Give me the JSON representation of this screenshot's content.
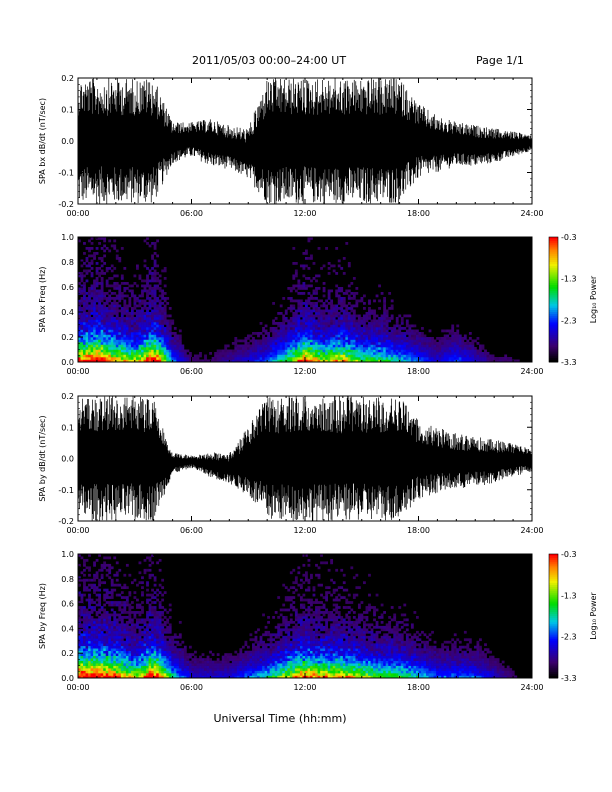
{
  "header": {
    "title": "2011/05/03  00:00–24:00 UT",
    "page": "Page 1/1"
  },
  "xlabel": "Universal Time (hh:mm)",
  "colorbar": {
    "label": "Log₁₀ Power",
    "ticks": [
      "-0.3",
      "-1.3",
      "-2.3",
      "-3.3"
    ],
    "range": [
      -3.3,
      -0.3
    ]
  },
  "chart_data": [
    {
      "type": "line",
      "ylabel": "SPA bx dB/dt (nT/sec)",
      "xlim": [
        0,
        24
      ],
      "ylim": [
        -0.2,
        0.2
      ],
      "xticks": [
        "00:00",
        "06:00",
        "12:00",
        "18:00",
        "24:00"
      ],
      "yticks": [
        "-0.2",
        "-0.1",
        "0.0",
        "0.1",
        "0.2"
      ],
      "x": [
        0,
        1,
        2,
        3,
        4,
        5,
        6,
        7,
        8,
        9,
        10,
        11,
        12,
        13,
        14,
        15,
        16,
        17,
        18,
        19,
        20,
        21,
        22,
        23,
        24
      ],
      "envelope_upper": [
        0.2,
        0.2,
        0.2,
        0.2,
        0.2,
        0.06,
        0.06,
        0.07,
        0.05,
        0.04,
        0.2,
        0.2,
        0.2,
        0.2,
        0.2,
        0.2,
        0.2,
        0.2,
        0.12,
        0.08,
        0.06,
        0.05,
        0.04,
        0.03,
        0.02
      ],
      "envelope_lower": [
        -0.2,
        -0.2,
        -0.2,
        -0.2,
        -0.2,
        -0.07,
        -0.05,
        -0.08,
        -0.09,
        -0.12,
        -0.2,
        -0.2,
        -0.2,
        -0.2,
        -0.2,
        -0.2,
        -0.2,
        -0.2,
        -0.12,
        -0.1,
        -0.08,
        -0.08,
        -0.07,
        -0.05,
        -0.03
      ]
    },
    {
      "type": "heatmap",
      "ylabel": "SPA bx Freq (Hz)",
      "xlim": [
        0,
        24
      ],
      "ylim": [
        0,
        1
      ],
      "xticks": [
        "00:00",
        "06:00",
        "12:00",
        "18:00",
        "24:00"
      ],
      "yticks": [
        "0.0",
        "0.2",
        "0.4",
        "0.6",
        "0.8",
        "1.0"
      ],
      "zlim": [
        -3.3,
        -0.3
      ],
      "x": [
        0,
        1,
        2,
        3,
        4,
        5,
        6,
        7,
        8,
        9,
        10,
        11,
        12,
        13,
        14,
        15,
        16,
        17,
        18,
        19,
        20,
        21,
        22,
        23,
        24
      ],
      "activity": [
        0.8,
        0.9,
        0.7,
        0.6,
        0.9,
        0.3,
        0.1,
        0.1,
        0.15,
        0.2,
        0.3,
        0.5,
        0.8,
        0.6,
        0.7,
        0.5,
        0.5,
        0.4,
        0.3,
        0.2,
        0.3,
        0.2,
        0.1,
        0.1,
        0.05
      ]
    },
    {
      "type": "line",
      "ylabel": "SPA by dB/dt (nT/sec)",
      "xlim": [
        0,
        24
      ],
      "ylim": [
        -0.2,
        0.2
      ],
      "xticks": [
        "00:00",
        "06:00",
        "12:00",
        "18:00",
        "24:00"
      ],
      "yticks": [
        "-0.2",
        "-0.1",
        "0.0",
        "0.1",
        "0.2"
      ],
      "x": [
        0,
        1,
        2,
        3,
        4,
        5,
        6,
        7,
        8,
        9,
        10,
        11,
        12,
        13,
        14,
        15,
        16,
        17,
        18,
        19,
        20,
        21,
        22,
        23,
        24
      ],
      "envelope_upper": [
        0.2,
        0.2,
        0.2,
        0.2,
        0.2,
        0.02,
        0.01,
        0.02,
        0.02,
        0.1,
        0.2,
        0.2,
        0.2,
        0.2,
        0.2,
        0.2,
        0.2,
        0.2,
        0.12,
        0.1,
        0.08,
        0.07,
        0.06,
        0.05,
        0.03
      ],
      "envelope_lower": [
        -0.2,
        -0.2,
        -0.2,
        -0.2,
        -0.2,
        -0.05,
        -0.03,
        -0.06,
        -0.08,
        -0.12,
        -0.2,
        -0.2,
        -0.2,
        -0.2,
        -0.2,
        -0.2,
        -0.2,
        -0.2,
        -0.13,
        -0.11,
        -0.1,
        -0.09,
        -0.08,
        -0.06,
        -0.04
      ]
    },
    {
      "type": "heatmap",
      "ylabel": "SPA by Freq (Hz)",
      "xlim": [
        0,
        24
      ],
      "ylim": [
        0,
        1
      ],
      "xticks": [
        "00:00",
        "06:00",
        "12:00",
        "18:00",
        "24:00"
      ],
      "yticks": [
        "0.0",
        "0.2",
        "0.4",
        "0.6",
        "0.8",
        "1.0"
      ],
      "zlim": [
        -3.3,
        -0.3
      ],
      "x": [
        0,
        1,
        2,
        3,
        4,
        5,
        6,
        7,
        8,
        9,
        10,
        11,
        12,
        13,
        14,
        15,
        16,
        17,
        18,
        19,
        20,
        21,
        22,
        23,
        24
      ],
      "activity": [
        0.9,
        0.9,
        0.8,
        0.6,
        0.9,
        0.4,
        0.2,
        0.2,
        0.2,
        0.3,
        0.4,
        0.6,
        0.8,
        0.7,
        0.7,
        0.6,
        0.5,
        0.5,
        0.4,
        0.3,
        0.3,
        0.3,
        0.2,
        0.1,
        0.05
      ]
    }
  ]
}
